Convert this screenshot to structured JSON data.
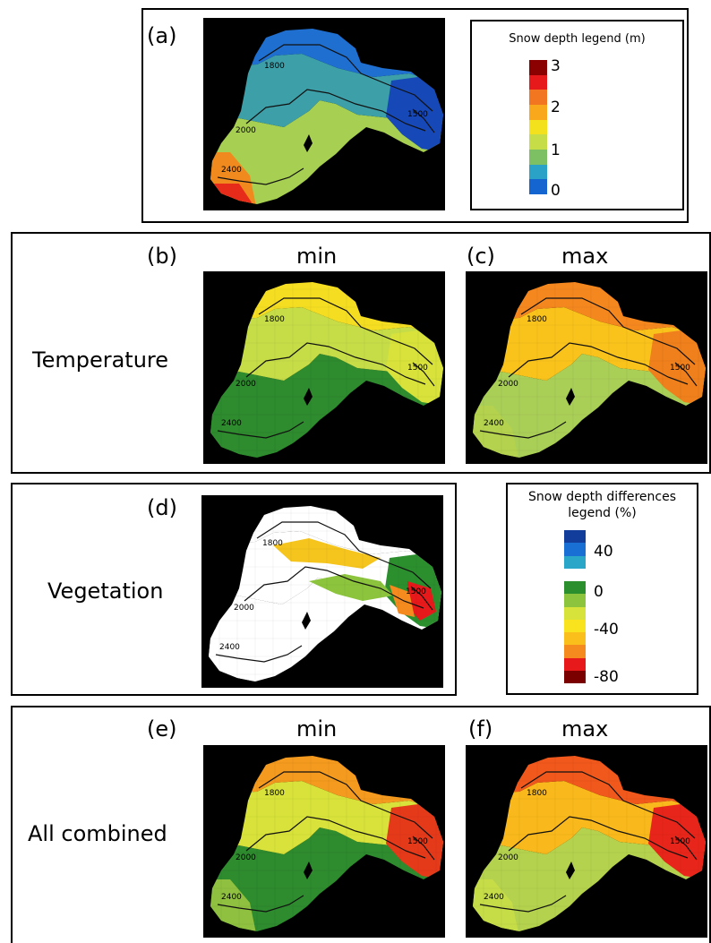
{
  "panels": {
    "a": {
      "label": "(a)"
    },
    "b": {
      "label": "(b)",
      "title": "min"
    },
    "c": {
      "label": "(c)",
      "title": "max"
    },
    "d": {
      "label": "(d)"
    },
    "e": {
      "label": "(e)",
      "title": "min"
    },
    "f": {
      "label": "(f)",
      "title": "max"
    }
  },
  "rows": {
    "temperature": "Temperature",
    "vegetation": "Vegetation",
    "combined": "All combined"
  },
  "contours": {
    "c1800": "1800",
    "c2000": "2000",
    "c2400": "2400",
    "c1500": "1500"
  },
  "legend_depth": {
    "title": "Snow depth legend (m)",
    "ticks": [
      "3",
      "2",
      "1",
      "0"
    ],
    "colors": [
      "#8b0000",
      "#e8191a",
      "#f27620",
      "#f9a71b",
      "#f4e11e",
      "#c6dd48",
      "#7dbf63",
      "#2aa2c7",
      "#1565d0"
    ]
  },
  "legend_diff": {
    "title_line1": "Snow depth differences",
    "title_line2": "legend (%)",
    "ticks": [
      "40",
      "0",
      "-40",
      "-80"
    ],
    "colors": [
      "#123d9b",
      "#1a6fd4",
      "#2aa6c9",
      "#ffffff",
      "#2b8f2e",
      "#8cc43d",
      "#d7e23a",
      "#f9e31e",
      "#fbbf1b",
      "#f58a1f",
      "#e8191a",
      "#7a0000"
    ]
  }
}
